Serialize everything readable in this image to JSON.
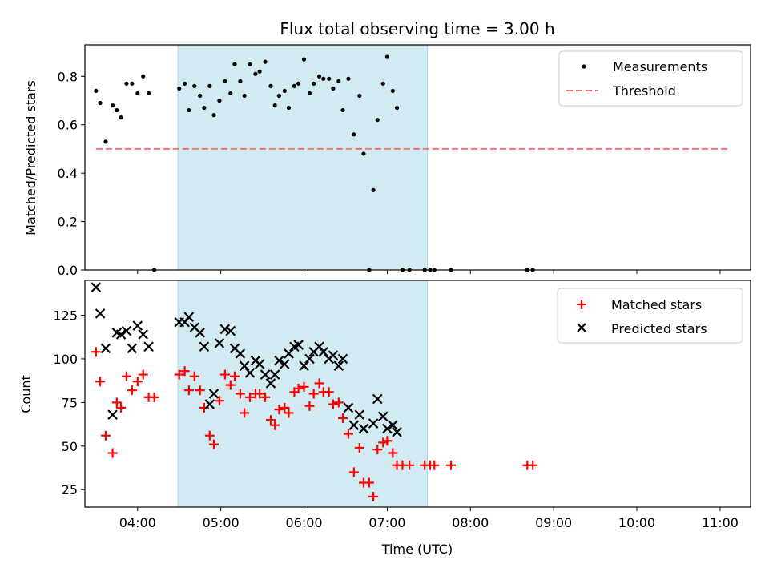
{
  "chart_data": [
    {
      "type": "scatter",
      "title": "Flux total observing time = 3.00 h",
      "xlabel": "",
      "ylabel": "Matched/Predicted stars",
      "xlim": [
        "03:22",
        "11:22"
      ],
      "ylim": [
        0,
        0.93
      ],
      "yticks": [
        "0.0",
        "0.2",
        "0.4",
        "0.6",
        "0.8"
      ],
      "highlight_span": [
        "04:29",
        "07:29"
      ],
      "legend": {
        "placement": "top-right",
        "entries": [
          "Measurements",
          "Threshold"
        ]
      },
      "series": [
        {
          "name": "Measurements",
          "marker": "dot",
          "color": "#000000",
          "points": [
            [
              "03:30",
              0.74
            ],
            [
              "03:33",
              0.69
            ],
            [
              "03:37",
              0.53
            ],
            [
              "03:42",
              0.68
            ],
            [
              "03:45",
              0.66
            ],
            [
              "03:48",
              0.63
            ],
            [
              "03:52",
              0.77
            ],
            [
              "03:56",
              0.77
            ],
            [
              "04:00",
              0.73
            ],
            [
              "04:04",
              0.8
            ],
            [
              "04:08",
              0.73
            ],
            [
              "04:12",
              0.0
            ],
            [
              "04:30",
              0.75
            ],
            [
              "04:34",
              0.77
            ],
            [
              "04:37",
              0.66
            ],
            [
              "04:41",
              0.76
            ],
            [
              "04:45",
              0.72
            ],
            [
              "04:48",
              0.67
            ],
            [
              "04:52",
              0.76
            ],
            [
              "04:55",
              0.64
            ],
            [
              "04:59",
              0.7
            ],
            [
              "05:03",
              0.78
            ],
            [
              "05:07",
              0.73
            ],
            [
              "05:10",
              0.85
            ],
            [
              "05:14",
              0.78
            ],
            [
              "05:17",
              0.72
            ],
            [
              "05:21",
              0.85
            ],
            [
              "05:25",
              0.81
            ],
            [
              "05:28",
              0.82
            ],
            [
              "05:32",
              0.86
            ],
            [
              "05:36",
              0.76
            ],
            [
              "05:39",
              0.68
            ],
            [
              "05:42",
              0.72
            ],
            [
              "05:46",
              0.74
            ],
            [
              "05:49",
              0.67
            ],
            [
              "05:53",
              0.76
            ],
            [
              "05:56",
              0.77
            ],
            [
              "06:00",
              0.87
            ],
            [
              "06:04",
              0.73
            ],
            [
              "06:07",
              0.77
            ],
            [
              "06:11",
              0.8
            ],
            [
              "06:14",
              0.79
            ],
            [
              "06:18",
              0.79
            ],
            [
              "06:21",
              0.75
            ],
            [
              "06:25",
              0.78
            ],
            [
              "06:28",
              0.66
            ],
            [
              "06:32",
              0.79
            ],
            [
              "06:36",
              0.56
            ],
            [
              "06:40",
              0.72
            ],
            [
              "06:43",
              0.48
            ],
            [
              "06:47",
              0.0
            ],
            [
              "06:50",
              0.33
            ],
            [
              "06:53",
              0.62
            ],
            [
              "06:57",
              0.77
            ],
            [
              "07:00",
              0.88
            ],
            [
              "07:04",
              0.74
            ],
            [
              "07:07",
              0.67
            ],
            [
              "07:11",
              0.0
            ],
            [
              "07:16",
              0.0
            ],
            [
              "07:27",
              0.0
            ],
            [
              "07:31",
              0.0
            ],
            [
              "07:34",
              0.0
            ],
            [
              "07:46",
              0.0
            ],
            [
              "08:41",
              0.0
            ],
            [
              "08:45",
              0.0
            ]
          ]
        },
        {
          "name": "Threshold",
          "style": "dashed",
          "color": "#ff7070",
          "points": [
            [
              "03:30",
              0.5
            ],
            [
              "11:07",
              0.5
            ]
          ]
        }
      ]
    },
    {
      "type": "scatter",
      "title": "",
      "xlabel": "Time (UTC)",
      "ylabel": "Count",
      "xlim": [
        "03:22",
        "11:22"
      ],
      "ylim": [
        15,
        145
      ],
      "yticks": [
        "25",
        "50",
        "75",
        "100",
        "125"
      ],
      "xticks": [
        "04:00",
        "05:00",
        "06:00",
        "07:00",
        "08:00",
        "09:00",
        "10:00",
        "11:00"
      ],
      "highlight_span": [
        "04:29",
        "07:29"
      ],
      "legend": {
        "placement": "top-right",
        "entries": [
          "Matched stars",
          "Predicted stars"
        ]
      },
      "series": [
        {
          "name": "Matched stars",
          "marker": "plus",
          "color": "#ff0000",
          "points": [
            [
              "03:30",
              104
            ],
            [
              "03:33",
              87
            ],
            [
              "03:37",
              56
            ],
            [
              "03:42",
              46
            ],
            [
              "03:45",
              75
            ],
            [
              "03:48",
              72
            ],
            [
              "03:52",
              90
            ],
            [
              "03:56",
              82
            ],
            [
              "04:00",
              87
            ],
            [
              "04:04",
              91
            ],
            [
              "04:08",
              78
            ],
            [
              "04:12",
              78
            ],
            [
              "04:30",
              91
            ],
            [
              "04:34",
              93
            ],
            [
              "04:37",
              82
            ],
            [
              "04:41",
              90
            ],
            [
              "04:45",
              82
            ],
            [
              "04:48",
              72
            ],
            [
              "04:52",
              56
            ],
            [
              "04:55",
              51
            ],
            [
              "04:59",
              76
            ],
            [
              "05:03",
              91
            ],
            [
              "05:07",
              85
            ],
            [
              "05:10",
              90
            ],
            [
              "05:14",
              80
            ],
            [
              "05:17",
              69
            ],
            [
              "05:21",
              78
            ],
            [
              "05:25",
              80
            ],
            [
              "05:28",
              80
            ],
            [
              "05:32",
              78
            ],
            [
              "05:36",
              65
            ],
            [
              "05:39",
              62
            ],
            [
              "05:42",
              71
            ],
            [
              "05:46",
              72
            ],
            [
              "05:49",
              69
            ],
            [
              "05:53",
              81
            ],
            [
              "05:56",
              83
            ],
            [
              "06:00",
              84
            ],
            [
              "06:04",
              73
            ],
            [
              "06:07",
              80
            ],
            [
              "06:11",
              86
            ],
            [
              "06:14",
              81
            ],
            [
              "06:18",
              81
            ],
            [
              "06:21",
              74
            ],
            [
              "06:25",
              75
            ],
            [
              "06:28",
              66
            ],
            [
              "06:32",
              57
            ],
            [
              "06:36",
              35
            ],
            [
              "06:40",
              49
            ],
            [
              "06:43",
              29
            ],
            [
              "06:47",
              29
            ],
            [
              "06:50",
              21
            ],
            [
              "06:53",
              48
            ],
            [
              "06:57",
              52
            ],
            [
              "07:00",
              53
            ],
            [
              "07:04",
              46
            ],
            [
              "07:07",
              39
            ],
            [
              "07:11",
              39
            ],
            [
              "07:16",
              39
            ],
            [
              "07:27",
              39
            ],
            [
              "07:31",
              39
            ],
            [
              "07:34",
              39
            ],
            [
              "07:46",
              39
            ],
            [
              "08:41",
              39
            ],
            [
              "08:45",
              39
            ]
          ]
        },
        {
          "name": "Predicted stars",
          "marker": "x",
          "color": "#000000",
          "points": [
            [
              "03:30",
              141
            ],
            [
              "03:33",
              126
            ],
            [
              "03:37",
              106
            ],
            [
              "03:42",
              68
            ],
            [
              "03:45",
              115
            ],
            [
              "03:48",
              114
            ],
            [
              "03:52",
              116
            ],
            [
              "03:56",
              106
            ],
            [
              "04:00",
              119
            ],
            [
              "04:04",
              114
            ],
            [
              "04:08",
              107
            ],
            [
              "04:30",
              121
            ],
            [
              "04:34",
              121
            ],
            [
              "04:37",
              124
            ],
            [
              "04:41",
              118
            ],
            [
              "04:45",
              115
            ],
            [
              "04:48",
              107
            ],
            [
              "04:52",
              74
            ],
            [
              "04:55",
              80
            ],
            [
              "04:59",
              109
            ],
            [
              "05:03",
              117
            ],
            [
              "05:07",
              116
            ],
            [
              "05:10",
              106
            ],
            [
              "05:14",
              103
            ],
            [
              "05:17",
              96
            ],
            [
              "05:21",
              92
            ],
            [
              "05:25",
              99
            ],
            [
              "05:28",
              97
            ],
            [
              "05:32",
              91
            ],
            [
              "05:36",
              86
            ],
            [
              "05:39",
              91
            ],
            [
              "05:42",
              99
            ],
            [
              "05:46",
              97
            ],
            [
              "05:49",
              103
            ],
            [
              "05:53",
              107
            ],
            [
              "05:56",
              108
            ],
            [
              "06:00",
              96
            ],
            [
              "06:04",
              100
            ],
            [
              "06:07",
              104
            ],
            [
              "06:11",
              107
            ],
            [
              "06:14",
              104
            ],
            [
              "06:18",
              100
            ],
            [
              "06:21",
              102
            ],
            [
              "06:25",
              96
            ],
            [
              "06:28",
              100
            ],
            [
              "06:32",
              72
            ],
            [
              "06:36",
              62
            ],
            [
              "06:40",
              68
            ],
            [
              "06:43",
              60
            ],
            [
              "06:50",
              63
            ],
            [
              "06:53",
              77
            ],
            [
              "06:57",
              67
            ],
            [
              "07:00",
              60
            ],
            [
              "07:04",
              62
            ],
            [
              "07:07",
              58
            ]
          ]
        }
      ]
    }
  ]
}
